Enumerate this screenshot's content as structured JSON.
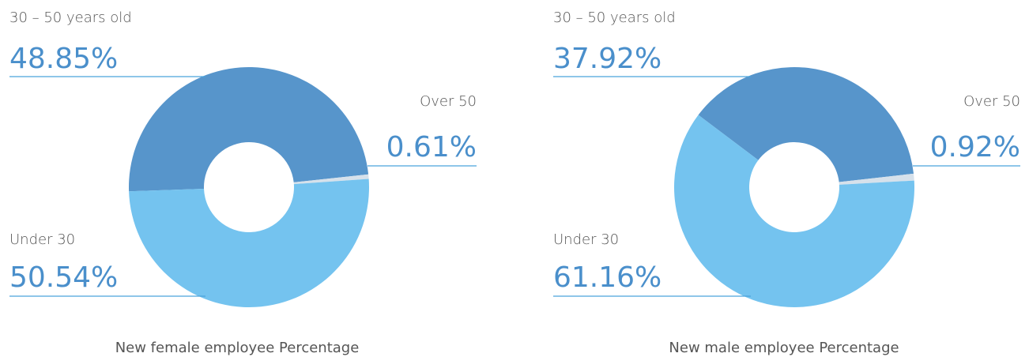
{
  "chart_data": [
    {
      "type": "pie",
      "donut": true,
      "title": "New female employee Percentage",
      "categories": [
        "Under 30",
        "30 – 50 years old",
        "Over 50"
      ],
      "values": [
        50.54,
        48.85,
        0.61
      ],
      "value_labels": [
        "50.54%",
        "48.85%",
        "0.61%"
      ],
      "colors": [
        "#74c3ef",
        "#5795cb",
        "#d6e1eb"
      ]
    },
    {
      "type": "pie",
      "donut": true,
      "title": "New male employee Percentage",
      "categories": [
        "Under 30",
        "30 – 50 years old",
        "Over 50"
      ],
      "values": [
        61.16,
        37.92,
        0.92
      ],
      "value_labels": [
        "61.16%",
        "37.92%",
        "0.92%"
      ],
      "colors": [
        "#74c3ef",
        "#5795cb",
        "#d6e1eb"
      ]
    }
  ]
}
